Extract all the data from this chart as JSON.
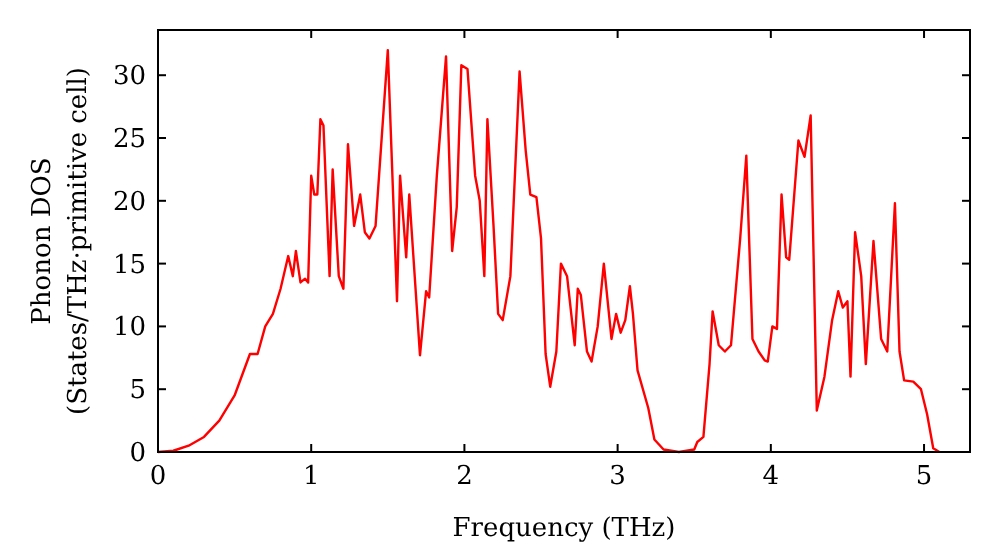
{
  "chart_data": {
    "type": "line",
    "xlabel": "Frequency (THz)",
    "ylabel": "Phonon DOS\n(States/THz·primitive cell)",
    "xlim": [
      0,
      5.3
    ],
    "ylim": [
      0,
      33.6
    ],
    "xticks": [
      0,
      1,
      2,
      3,
      4,
      5
    ],
    "yticks": [
      0,
      5,
      10,
      15,
      20,
      25,
      30
    ],
    "grid": false,
    "series": [
      {
        "color": "#ff0000",
        "x": [
          0,
          0.1,
          0.2,
          0.3,
          0.4,
          0.5,
          0.6,
          0.65,
          0.7,
          0.75,
          0.8,
          0.85,
          0.88,
          0.9,
          0.93,
          0.96,
          0.98,
          1.0,
          1.02,
          1.04,
          1.06,
          1.08,
          1.12,
          1.14,
          1.18,
          1.21,
          1.24,
          1.28,
          1.32,
          1.35,
          1.38,
          1.42,
          1.5,
          1.56,
          1.58,
          1.62,
          1.64,
          1.71,
          1.75,
          1.77,
          1.82,
          1.88,
          1.92,
          1.95,
          1.98,
          2.02,
          2.07,
          2.1,
          2.13,
          2.15,
          2.19,
          2.22,
          2.25,
          2.3,
          2.36,
          2.4,
          2.43,
          2.47,
          2.5,
          2.53,
          2.56,
          2.6,
          2.63,
          2.67,
          2.72,
          2.74,
          2.76,
          2.8,
          2.83,
          2.87,
          2.91,
          2.96,
          2.99,
          3.02,
          3.05,
          3.08,
          3.1,
          3.13,
          3.2,
          3.24,
          3.3,
          3.4,
          3.5,
          3.52,
          3.56,
          3.6,
          3.62,
          3.66,
          3.7,
          3.74,
          3.8,
          3.84,
          3.88,
          3.92,
          3.96,
          3.98,
          4.01,
          4.04,
          4.07,
          4.1,
          4.12,
          4.18,
          4.22,
          4.26,
          4.3,
          4.35,
          4.4,
          4.44,
          4.47,
          4.5,
          4.52,
          4.55,
          4.59,
          4.62,
          4.67,
          4.72,
          4.76,
          4.81,
          4.84,
          4.87,
          4.93,
          4.98,
          5.02,
          5.06,
          5.1
        ],
        "values": [
          0,
          0.1,
          0.5,
          1.2,
          2.5,
          4.5,
          7.8,
          7.8,
          10,
          11,
          13,
          15.6,
          14,
          16,
          13.5,
          13.8,
          13.5,
          22,
          20.5,
          20.5,
          26.5,
          26,
          14,
          22.5,
          14,
          13,
          24.5,
          18,
          20.5,
          17.5,
          17,
          18,
          32,
          12,
          22,
          15.5,
          20.5,
          7.7,
          12.8,
          12.3,
          22,
          31.5,
          16,
          19.5,
          30.8,
          30.5,
          22,
          20,
          14,
          26.5,
          18,
          11,
          10.5,
          14,
          30.3,
          24,
          20.5,
          20.3,
          17,
          7.8,
          5.2,
          8,
          15,
          14,
          8.5,
          13,
          12.5,
          8,
          7.2,
          10,
          15,
          9,
          11,
          9.5,
          10.5,
          13.2,
          11,
          6.5,
          3.5,
          1,
          0.2,
          0,
          0.2,
          0.8,
          1.2,
          7,
          11.2,
          8.5,
          8,
          8.5,
          17,
          23.6,
          9,
          8,
          7.3,
          7.2,
          10,
          9.8,
          20.5,
          15.5,
          15.3,
          24.8,
          23.5,
          26.8,
          3.3,
          6,
          10.5,
          12.8,
          11.5,
          12,
          6,
          17.5,
          14,
          7,
          16.8,
          9,
          8,
          19.8,
          8,
          5.7,
          5.6,
          5,
          3,
          0.3,
          0
        ]
      }
    ]
  }
}
